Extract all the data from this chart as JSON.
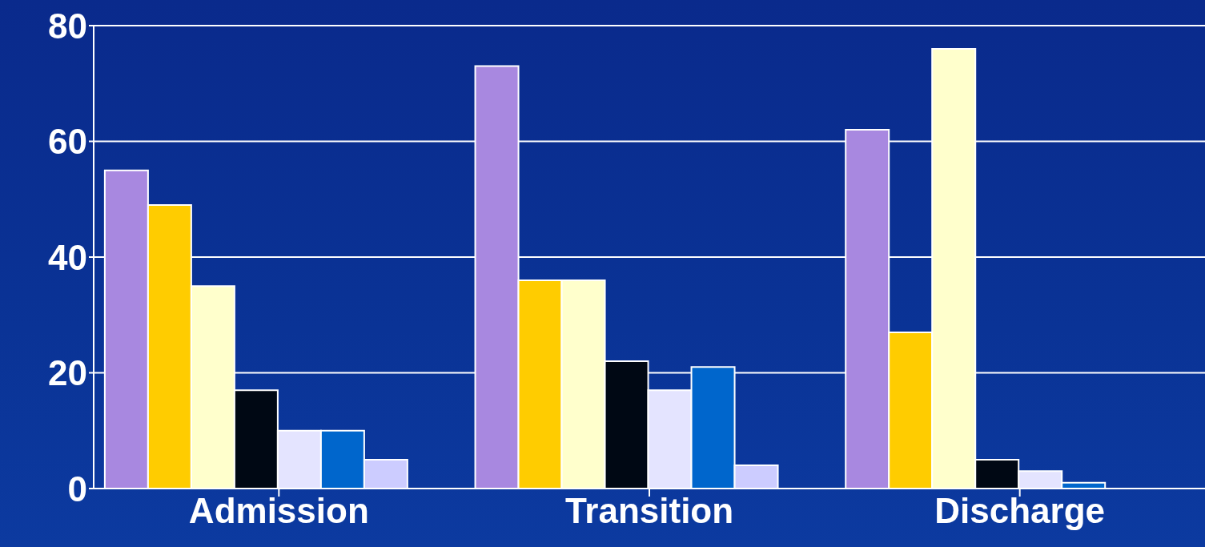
{
  "chart_data": {
    "type": "bar",
    "categories": [
      "Admission",
      "Transition",
      "Discharge"
    ],
    "series": [
      {
        "color": "#a888e0",
        "values": [
          55,
          73,
          62
        ]
      },
      {
        "color": "#ffcc00",
        "values": [
          49,
          36,
          27
        ]
      },
      {
        "color": "#ffffcc",
        "values": [
          35,
          36,
          76
        ]
      },
      {
        "color": "#000814",
        "values": [
          17,
          22,
          5
        ]
      },
      {
        "color": "#e4e4ff",
        "values": [
          10,
          17,
          3
        ]
      },
      {
        "color": "#0066cc",
        "values": [
          10,
          21,
          1
        ]
      },
      {
        "color": "#ccccff",
        "values": [
          5,
          4,
          0
        ]
      },
      {
        "color": "#9999ff",
        "values": [
          0,
          0,
          0
        ]
      }
    ],
    "ylim": [
      0,
      80
    ],
    "yticks": [
      0,
      20,
      40,
      60,
      80
    ],
    "grid": "y",
    "legend": false
  }
}
